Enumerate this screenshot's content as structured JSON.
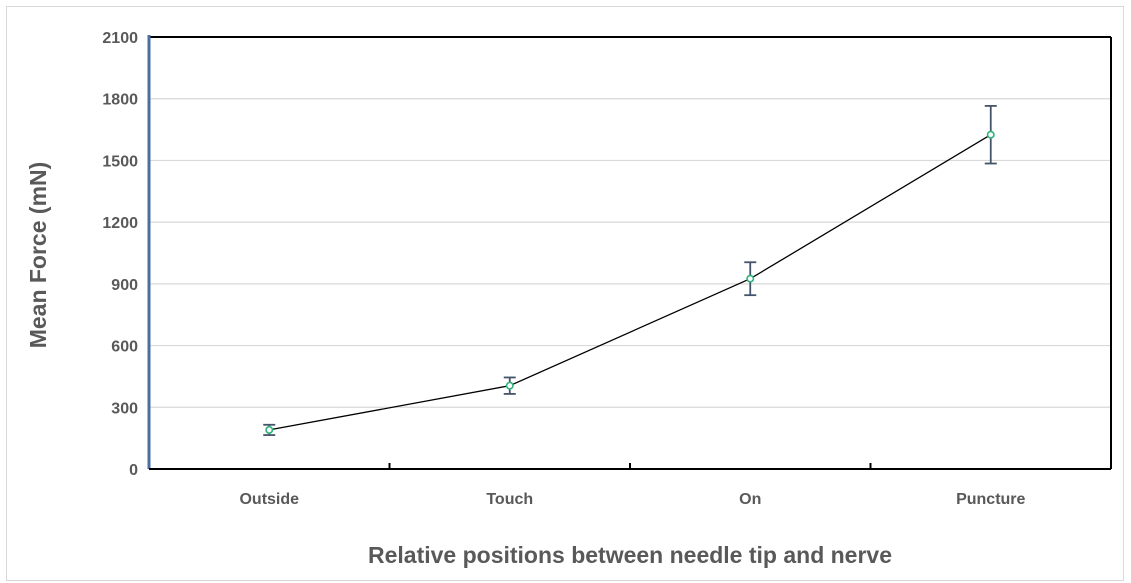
{
  "chart_data": {
    "type": "line",
    "title": "",
    "xlabel": "Relative positions between needle tip and nerve",
    "ylabel": "Mean Force (mN)",
    "categories": [
      "Outside",
      "Touch",
      "On",
      "Puncture"
    ],
    "series": [
      {
        "name": "",
        "values": [
          190,
          405,
          925,
          1625
        ],
        "error_plus": [
          25,
          40,
          80,
          140
        ],
        "error_minus": [
          25,
          40,
          80,
          140
        ]
      }
    ],
    "ylim": [
      0,
      2100
    ],
    "yticks": [
      0,
      300,
      600,
      900,
      1200,
      1500,
      1800,
      2100
    ],
    "grid": true,
    "legend": "none",
    "colors": {
      "line": "#000000",
      "marker_stroke": "#2db37a",
      "error_bar": "#44546a",
      "grid": "#d9d9d9",
      "axis": "#000000",
      "text": "#595959"
    }
  }
}
